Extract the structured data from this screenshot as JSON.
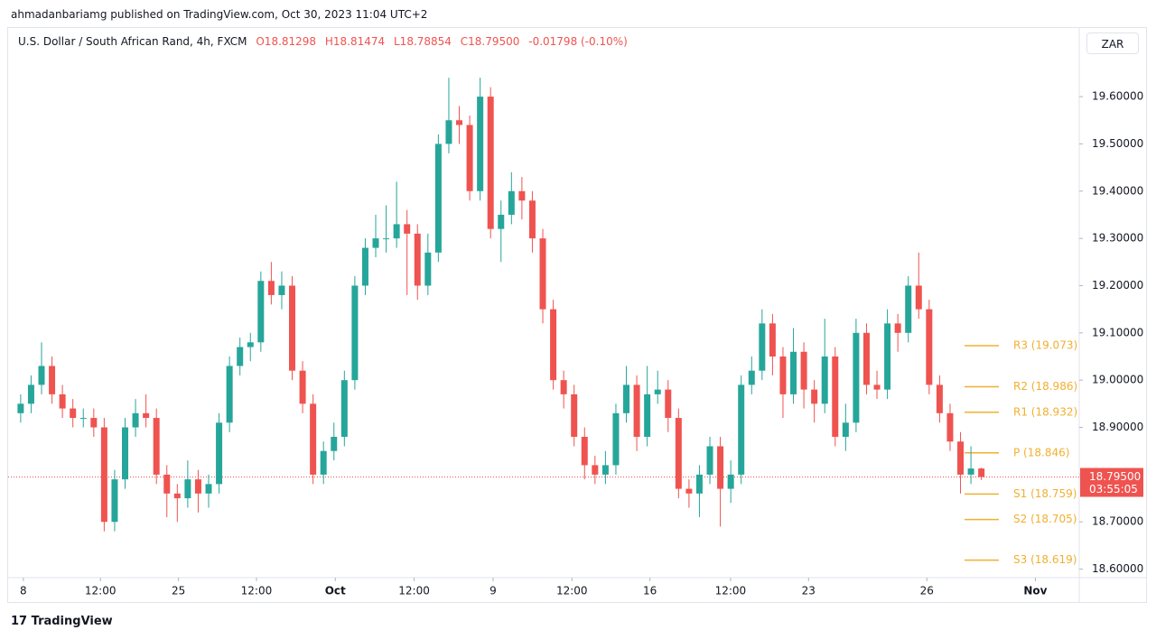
{
  "publisher": "ahmadanbariamg published on TradingView.com, Oct 30, 2023 11:04 UTC+2",
  "footer": "TradingView",
  "chart_data": {
    "type": "candlestick",
    "symbol": "U.S. Dollar / South African Rand, 4h, FXCM",
    "header_open": "O18.81298",
    "header_high": "H18.81474",
    "header_low": "L18.78854",
    "header_close": "C18.79500",
    "header_change": "-0.01798 (-0.10%)",
    "currency": "ZAR",
    "up_color": "#26a69a",
    "down_color": "#ef5350",
    "grid": false,
    "open": [
      18.93,
      18.95,
      18.99,
      19.03,
      18.97,
      18.94,
      18.92,
      18.92,
      18.9,
      18.7,
      18.79,
      18.9,
      18.93,
      18.92,
      18.8,
      18.76,
      18.75,
      18.79,
      18.76,
      18.78,
      18.91,
      19.03,
      19.07,
      19.08,
      19.21,
      19.18,
      19.2,
      19.02,
      18.95,
      18.8,
      18.85,
      18.88,
      19.0,
      19.2,
      19.28,
      19.3,
      19.3,
      19.33,
      19.31,
      19.2,
      19.27,
      19.5,
      19.55,
      19.54,
      19.4,
      19.6,
      19.32,
      19.35,
      19.4,
      19.38,
      19.3,
      19.15,
      19.0,
      18.97,
      18.88,
      18.82,
      18.8,
      18.82,
      18.93,
      18.99,
      18.88,
      18.97,
      18.98,
      18.92,
      18.77,
      18.76,
      18.8,
      18.86,
      18.77,
      18.8,
      18.99,
      19.02,
      19.12,
      19.05,
      18.97,
      19.06,
      18.98,
      18.95,
      19.05,
      18.88,
      18.91,
      19.1,
      18.99,
      18.98,
      19.12,
      19.1,
      19.2,
      19.15,
      18.99,
      18.93,
      18.87,
      18.8,
      18.81298
    ],
    "high": [
      18.97,
      19.01,
      19.08,
      19.05,
      18.99,
      18.96,
      18.94,
      18.94,
      18.92,
      18.81,
      18.92,
      18.96,
      18.97,
      18.94,
      18.82,
      18.78,
      18.83,
      18.81,
      18.8,
      18.93,
      19.05,
      19.09,
      19.1,
      19.23,
      19.25,
      19.23,
      19.22,
      19.04,
      18.97,
      18.87,
      18.91,
      19.02,
      19.22,
      19.3,
      19.35,
      19.37,
      19.42,
      19.36,
      19.33,
      19.31,
      19.52,
      19.64,
      19.58,
      19.56,
      19.64,
      19.62,
      19.38,
      19.44,
      19.43,
      19.4,
      19.32,
      19.17,
      19.02,
      18.99,
      18.9,
      18.84,
      18.85,
      18.95,
      19.03,
      19.01,
      19.03,
      19.02,
      19.0,
      18.94,
      18.79,
      18.82,
      18.88,
      18.88,
      18.83,
      19.01,
      19.05,
      19.15,
      19.14,
      19.07,
      19.11,
      19.08,
      19.0,
      19.13,
      19.07,
      18.95,
      19.13,
      19.12,
      19.02,
      19.15,
      19.14,
      19.22,
      19.27,
      19.17,
      19.01,
      18.95,
      18.89,
      18.86,
      18.81474
    ],
    "low": [
      18.91,
      18.93,
      18.97,
      18.95,
      18.92,
      18.9,
      18.9,
      18.88,
      18.68,
      18.68,
      18.77,
      18.88,
      18.9,
      18.78,
      18.71,
      18.7,
      18.73,
      18.72,
      18.73,
      18.76,
      18.89,
      19.01,
      19.04,
      19.06,
      19.16,
      19.15,
      19.0,
      18.93,
      18.78,
      18.78,
      18.83,
      18.86,
      18.98,
      19.18,
      19.26,
      19.27,
      19.28,
      19.18,
      19.17,
      19.18,
      19.25,
      19.48,
      19.5,
      19.38,
      19.38,
      19.3,
      19.25,
      19.33,
      19.34,
      19.27,
      19.12,
      18.98,
      18.94,
      18.86,
      18.79,
      18.78,
      18.78,
      18.8,
      18.91,
      18.85,
      18.86,
      18.95,
      18.89,
      18.75,
      18.73,
      18.71,
      18.78,
      18.69,
      18.74,
      18.78,
      18.97,
      19.0,
      19.01,
      18.92,
      18.95,
      18.94,
      18.91,
      18.93,
      18.86,
      18.85,
      18.89,
      18.97,
      18.96,
      18.96,
      19.06,
      19.08,
      19.13,
      18.97,
      18.91,
      18.85,
      18.76,
      18.78,
      18.78854
    ],
    "close": [
      18.95,
      18.99,
      19.03,
      18.97,
      18.94,
      18.92,
      18.92,
      18.9,
      18.7,
      18.79,
      18.9,
      18.93,
      18.92,
      18.8,
      18.76,
      18.75,
      18.79,
      18.76,
      18.78,
      18.91,
      19.03,
      19.07,
      19.08,
      19.21,
      19.18,
      19.2,
      19.02,
      18.95,
      18.8,
      18.85,
      18.88,
      19.0,
      19.2,
      19.28,
      19.3,
      19.3,
      19.33,
      19.31,
      19.2,
      19.27,
      19.5,
      19.55,
      19.54,
      19.4,
      19.6,
      19.32,
      19.35,
      19.4,
      19.38,
      19.3,
      19.15,
      19.0,
      18.97,
      18.88,
      18.82,
      18.8,
      18.82,
      18.93,
      18.99,
      18.88,
      18.97,
      18.98,
      18.92,
      18.77,
      18.76,
      18.8,
      18.86,
      18.77,
      18.8,
      18.99,
      19.02,
      19.12,
      19.05,
      18.97,
      19.06,
      18.98,
      18.95,
      19.05,
      18.88,
      18.91,
      19.1,
      18.99,
      18.98,
      19.12,
      19.1,
      19.2,
      19.15,
      18.99,
      18.93,
      18.87,
      18.8,
      18.81298,
      18.795
    ],
    "xlim": [
      -1.2,
      101.37
    ],
    "xticks": [
      {
        "value": 0.26,
        "label": "8"
      },
      {
        "value": 7.64,
        "label": "12:00"
      },
      {
        "value": 15.11,
        "label": "25"
      },
      {
        "value": 22.58,
        "label": "12:00"
      },
      {
        "value": 30.13,
        "label": "Oct"
      },
      {
        "value": 37.68,
        "label": "12:00"
      },
      {
        "value": 45.24,
        "label": "9"
      },
      {
        "value": 52.79,
        "label": "12:00"
      },
      {
        "value": 60.26,
        "label": "16"
      },
      {
        "value": 67.98,
        "label": "12:00"
      },
      {
        "value": 75.45,
        "label": "23"
      },
      {
        "value": 86.78,
        "label": "26"
      },
      {
        "value": 97.17,
        "label": "Nov"
      }
    ],
    "ylim": [
      18.582,
      19.688
    ],
    "yticks": [
      {
        "value": 18.6,
        "label": "18.60000"
      },
      {
        "value": 18.7,
        "label": "18.70000"
      },
      {
        "value": 18.8,
        "label": "18.80000"
      },
      {
        "value": 18.9,
        "label": "18.90000"
      },
      {
        "value": 19.0,
        "label": "19.00000"
      },
      {
        "value": 19.1,
        "label": "19.10000"
      },
      {
        "value": 19.2,
        "label": "19.20000"
      },
      {
        "value": 19.3,
        "label": "19.30000"
      },
      {
        "value": 19.4,
        "label": "19.40000"
      },
      {
        "value": 19.5,
        "label": "19.50000"
      },
      {
        "value": 19.6,
        "label": "19.60000"
      }
    ],
    "current_price": {
      "value": 18.795,
      "label": "18.79500"
    },
    "countdown": "03:55:05",
    "pivot_color": "#f0b030",
    "pivots": [
      {
        "value": 19.073,
        "label": "R3 (19.073)"
      },
      {
        "value": 18.986,
        "label": "R2 (18.986)"
      },
      {
        "value": 18.932,
        "label": "R1 (18.932)"
      },
      {
        "value": 18.846,
        "label": "P (18.846)"
      },
      {
        "value": 18.759,
        "label": "S1 (18.759)"
      },
      {
        "value": 18.705,
        "label": "S2 (18.705)"
      },
      {
        "value": 18.619,
        "label": "S3 (18.619)"
      }
    ]
  }
}
